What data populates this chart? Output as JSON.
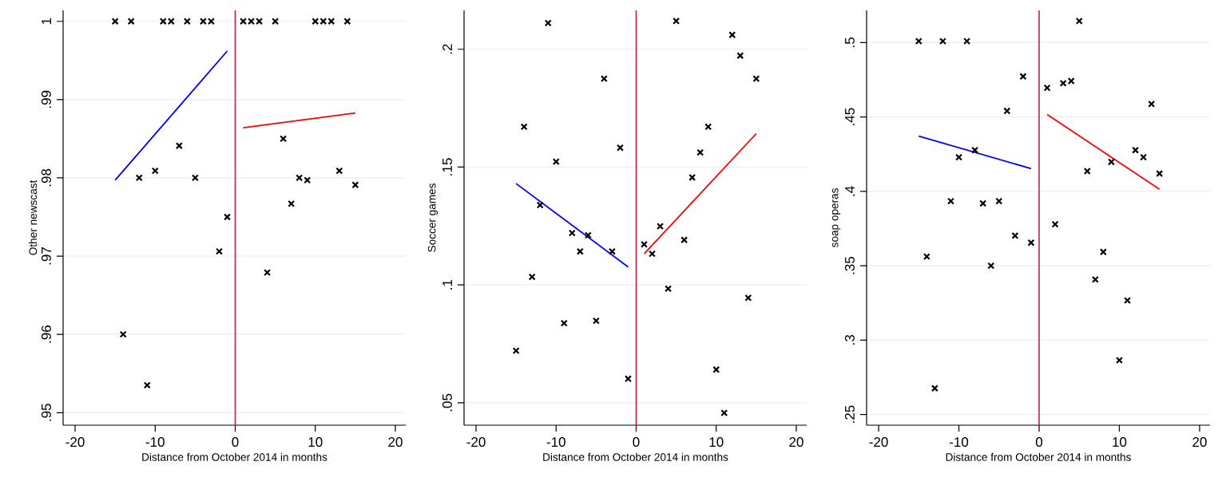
{
  "chart_data": [
    {
      "type": "scatter",
      "xlabel": "Distance from October 2014 in months",
      "ylabel": "Other newscast",
      "xlim": [
        -21.5,
        21.3
      ],
      "ylim": [
        0.9484,
        1.0014
      ],
      "xticks": [
        -20,
        -10,
        0,
        10,
        20
      ],
      "yticks": [
        {
          "value": 0.95,
          "label": ".95"
        },
        {
          "value": 0.96,
          "label": ".96"
        },
        {
          "value": 0.97,
          "label": ".97"
        },
        {
          "value": 0.98,
          "label": ".98"
        },
        {
          "value": 0.99,
          "label": ".99"
        },
        1
      ],
      "grid": "y",
      "ref_lines": [
        {
          "axis": "x",
          "value": 0,
          "color": "#c8203c"
        }
      ],
      "series": [
        {
          "marker": "cross",
          "color": "#000000",
          "x": [
            -15,
            -14,
            -13,
            -12,
            -11,
            -10,
            -9,
            -8,
            -7,
            -6,
            -5,
            -4,
            -3,
            -2,
            -1,
            1,
            2,
            3,
            4,
            5,
            6,
            7,
            8,
            9,
            10,
            11,
            12,
            13,
            14,
            15
          ],
          "values": [
            1,
            0.96,
            1,
            0.98,
            0.9535,
            0.9809,
            1,
            1,
            0.9841,
            1,
            0.98,
            1,
            1,
            0.9706,
            0.975,
            1,
            1,
            1,
            0.9679,
            1,
            0.985,
            0.9767,
            0.98,
            0.9797,
            1,
            1,
            1,
            0.9809,
            1,
            0.9791
          ]
        },
        {
          "type": "line",
          "color": "#0000ff",
          "x": [
            -15,
            -1
          ],
          "values": [
            0.9797,
            0.9962
          ]
        },
        {
          "type": "line",
          "color": "#ff0000",
          "x": [
            1,
            15
          ],
          "values": [
            0.9864,
            0.9883
          ]
        }
      ]
    },
    {
      "type": "scatter",
      "xlabel": "Distance from October 2014 in months",
      "ylabel": "Soccer games",
      "xlim": [
        -21.5,
        21.3
      ],
      "ylim": [
        0.0405,
        0.2165
      ],
      "xticks": [
        -20,
        -10,
        0,
        10,
        20
      ],
      "yticks": [
        {
          "value": 0.05,
          "label": ".05"
        },
        {
          "value": 0.1,
          "label": ".1"
        },
        {
          "value": 0.15,
          "label": ".15"
        },
        {
          "value": 0.2,
          "label": ".2"
        }
      ],
      "grid": "y",
      "ref_lines": [
        {
          "axis": "x",
          "value": 0,
          "color": "#c8203c"
        }
      ],
      "series": [
        {
          "marker": "cross",
          "color": "#000000",
          "x": [
            -15,
            -14,
            -13,
            -12,
            -11,
            -10,
            -9,
            -8,
            -7,
            -6,
            -5,
            -4,
            -3,
            -2,
            -1,
            1,
            2,
            3,
            4,
            5,
            6,
            7,
            8,
            9,
            10,
            11,
            12,
            13,
            14,
            15
          ],
          "values": [
            0.0721,
            0.1671,
            0.1034,
            0.1339,
            0.2111,
            0.1523,
            0.0838,
            0.122,
            0.1142,
            0.1211,
            0.0848,
            0.1875,
            0.1142,
            0.1582,
            0.0602,
            0.1172,
            0.1132,
            0.1249,
            0.0984,
            0.212,
            0.1191,
            0.1456,
            0.1562,
            0.1671,
            0.0641,
            0.0457,
            0.2061,
            0.1973,
            0.0945,
            0.1875
          ]
        },
        {
          "type": "line",
          "color": "#0000ff",
          "x": [
            -15,
            -1
          ],
          "values": [
            0.143,
            0.1076
          ]
        },
        {
          "type": "line",
          "color": "#ff0000",
          "x": [
            1,
            15
          ],
          "values": [
            0.1132,
            0.1642
          ]
        }
      ]
    },
    {
      "type": "scatter",
      "xlabel": "Distance from October 2014 in months",
      "ylabel": "soap operas",
      "xlim": [
        -21.5,
        21.3
      ],
      "ylim": [
        0.2428,
        0.5217
      ],
      "xticks": [
        -20,
        -10,
        0,
        10,
        20
      ],
      "yticks": [
        {
          "value": 0.25,
          "label": ".25"
        },
        {
          "value": 0.3,
          "label": ".3"
        },
        {
          "value": 0.35,
          "label": ".35"
        },
        {
          "value": 0.4,
          "label": ".4"
        },
        {
          "value": 0.45,
          "label": ".45"
        },
        {
          "value": 0.5,
          "label": ".5"
        }
      ],
      "grid": "y",
      "ref_lines": [
        {
          "axis": "x",
          "value": 0,
          "color": "#c8203c"
        }
      ],
      "series": [
        {
          "marker": "cross",
          "color": "#000000",
          "x": [
            -15,
            -14,
            -13,
            -12,
            -11,
            -10,
            -9,
            -8,
            -7,
            -6,
            -5,
            -4,
            -3,
            -2,
            -1,
            1,
            2,
            3,
            4,
            5,
            6,
            7,
            8,
            9,
            10,
            11,
            12,
            13,
            14,
            15
          ],
          "values": [
            0.501,
            0.3562,
            0.2676,
            0.501,
            0.3934,
            0.4229,
            0.501,
            0.4277,
            0.3919,
            0.35,
            0.3934,
            0.4541,
            0.3702,
            0.4773,
            0.3655,
            0.4696,
            0.3779,
            0.4727,
            0.4742,
            0.5145,
            0.4136,
            0.3407,
            0.3593,
            0.4198,
            0.2864,
            0.3267,
            0.4277,
            0.4229,
            0.4587,
            0.412
          ]
        },
        {
          "type": "line",
          "color": "#0000ff",
          "x": [
            -15,
            -1
          ],
          "values": [
            0.4372,
            0.4153
          ]
        },
        {
          "type": "line",
          "color": "#ff0000",
          "x": [
            1,
            15
          ],
          "values": [
            0.4517,
            0.4014
          ]
        }
      ]
    }
  ]
}
